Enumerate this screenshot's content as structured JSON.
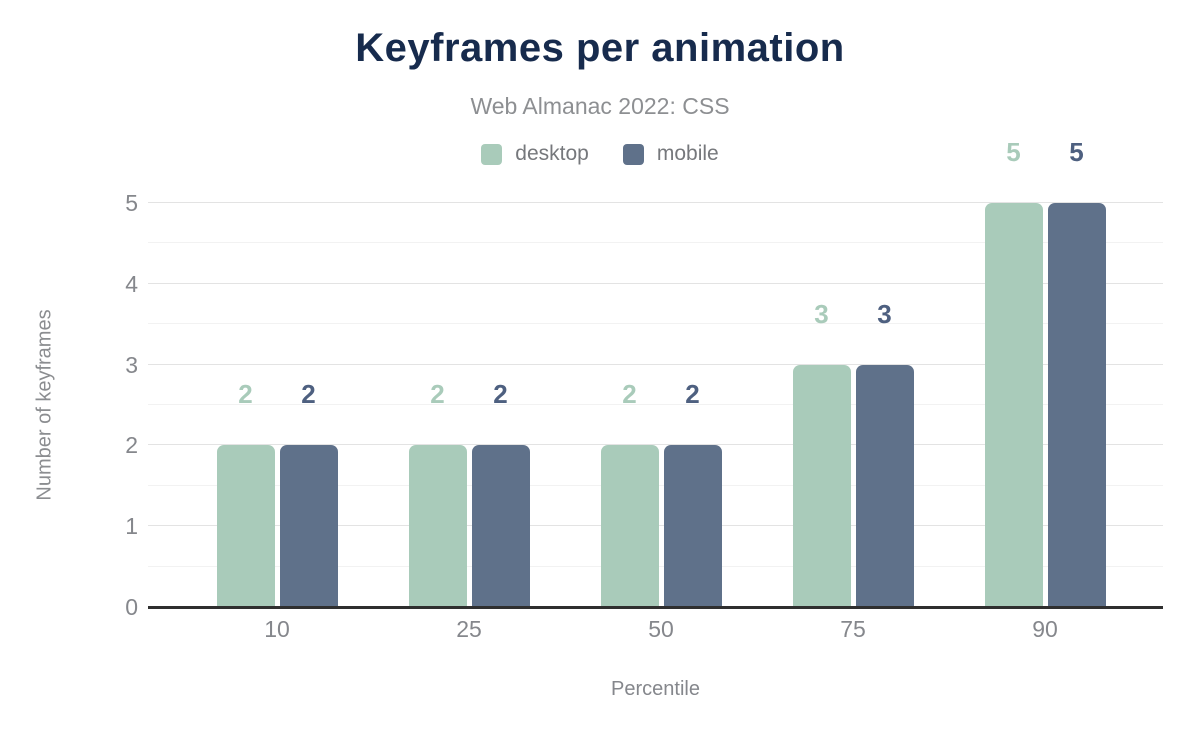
{
  "chart_data": {
    "type": "bar",
    "title": "Keyframes per animation",
    "subtitle": "Web Almanac 2022: CSS",
    "xlabel": "Percentile",
    "ylabel": "Number of keyframes",
    "categories": [
      "10",
      "25",
      "50",
      "75",
      "90"
    ],
    "series": [
      {
        "name": "desktop",
        "color": "#a9cbba",
        "label_color": "#a9cbba",
        "values": [
          2,
          2,
          2,
          3,
          5
        ]
      },
      {
        "name": "mobile",
        "color": "#5f718a",
        "label_color": "#4e6080",
        "values": [
          2,
          2,
          2,
          3,
          5
        ]
      }
    ],
    "ylim": [
      0,
      5
    ],
    "yticks": [
      0,
      1,
      2,
      3,
      4,
      5
    ],
    "grid_step": 0.5,
    "legend_position": "top",
    "grid": true,
    "title_color": "#172b4d"
  }
}
